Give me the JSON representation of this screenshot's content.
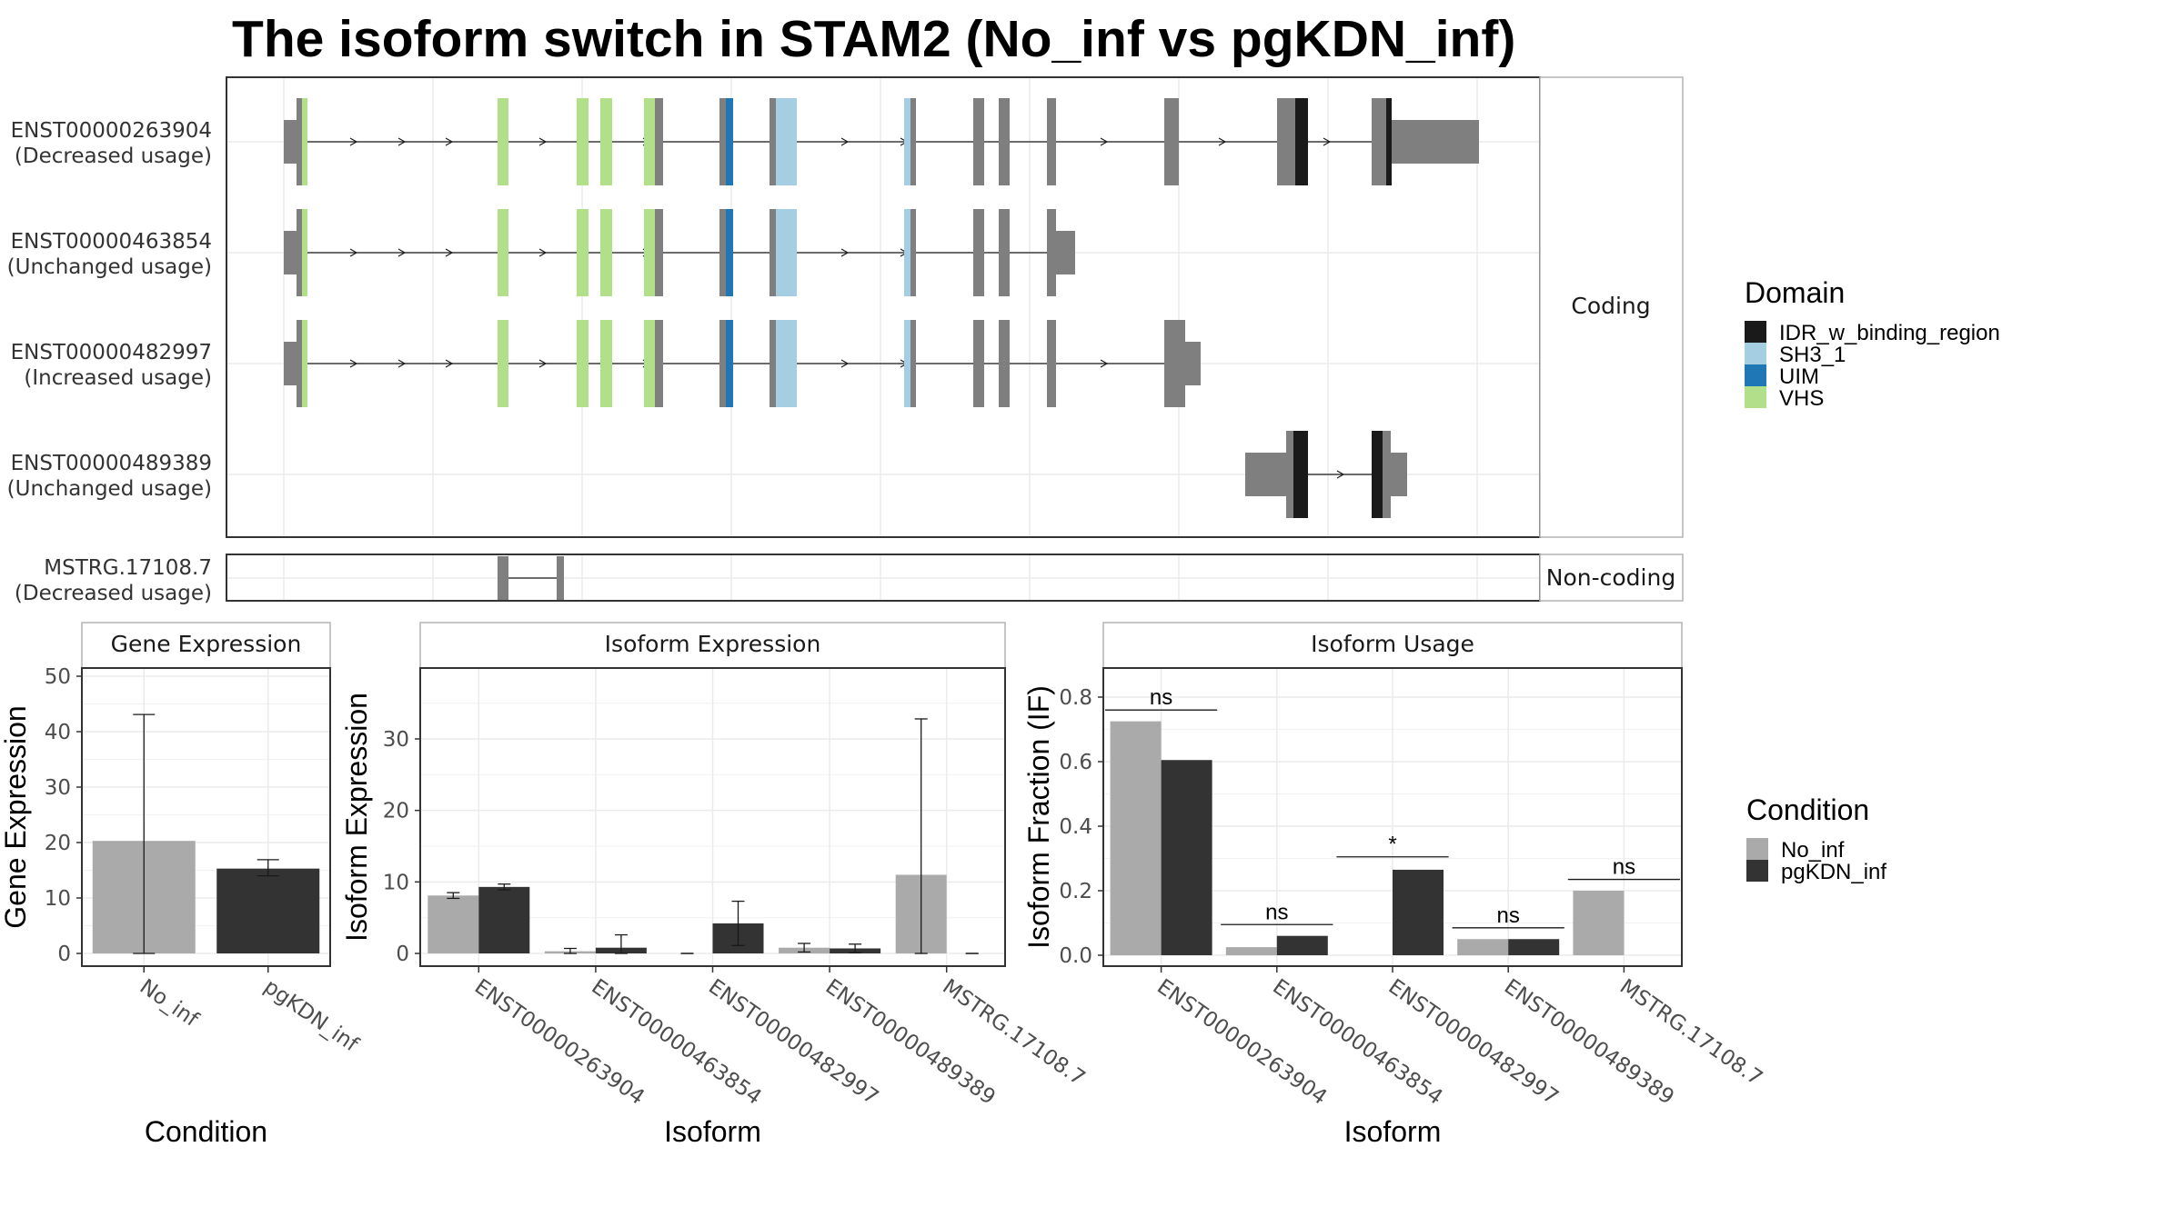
{
  "title": "The isoform switch in STAM2 (No_inf vs pgKDN_inf)",
  "colors": {
    "exon": "#7f7f7f",
    "no_inf": "#aaaaaa",
    "pgkdn_inf": "#333333",
    "IDR_w_binding_region": "#1a1a1a",
    "SH3_1": "#a6cee3",
    "UIM": "#1f78b4",
    "VHS": "#b2df8a"
  },
  "structure": {
    "coding_strip": "Coding",
    "noncoding_strip": "Non-coding",
    "transcripts": [
      {
        "id": "ENST00000263904",
        "usage": "(Decreased usage)",
        "group": "coding"
      },
      {
        "id": "ENST00000463854",
        "usage": "(Unchanged usage)",
        "group": "coding"
      },
      {
        "id": "ENST00000482997",
        "usage": "(Increased usage)",
        "group": "coding"
      },
      {
        "id": "ENST00000489389",
        "usage": "(Unchanged usage)",
        "group": "coding"
      },
      {
        "id": "MSTRG.17108.7",
        "usage": "(Decreased usage)",
        "group": "noncoding"
      }
    ]
  },
  "domain_legend": {
    "title": "Domain",
    "items": [
      {
        "name": "IDR_w_binding_region",
        "color": "#1a1a1a"
      },
      {
        "name": "SH3_1",
        "color": "#a6cee3"
      },
      {
        "name": "UIM",
        "color": "#1f78b4"
      },
      {
        "name": "VHS",
        "color": "#b2df8a"
      }
    ]
  },
  "condition_legend": {
    "title": "Condition",
    "items": [
      {
        "name": "No_inf",
        "color": "#aaaaaa"
      },
      {
        "name": "pgKDN_inf",
        "color": "#333333"
      }
    ]
  },
  "chart_data": [
    {
      "type": "bar",
      "title": "Gene Expression",
      "xlabel": "Condition",
      "ylabel": "Gene Expression",
      "categories": [
        "No_inf",
        "pgKDN_inf"
      ],
      "values": [
        20.3,
        15.3
      ],
      "error_low": [
        0,
        14
      ],
      "error_high": [
        43.1,
        16.9
      ],
      "ylim": [
        0,
        52
      ],
      "yticks": [
        0,
        10,
        20,
        30,
        40,
        50
      ]
    },
    {
      "type": "bar",
      "title": "Isoform Expression",
      "xlabel": "Isoform",
      "ylabel": "Isoform Expression",
      "categories": [
        "ENST00000263904",
        "ENST00000463854",
        "ENST00000482997",
        "ENST00000489389",
        "MSTRG.17108.7"
      ],
      "series": [
        {
          "name": "No_inf",
          "values": [
            8.1,
            0.3,
            0,
            0.8,
            11
          ],
          "error_low": [
            7.7,
            0,
            0,
            0.2,
            0
          ],
          "error_high": [
            8.5,
            0.7,
            0,
            1.4,
            32.8
          ]
        },
        {
          "name": "pgKDN_inf",
          "values": [
            9.3,
            0.8,
            4.2,
            0.7,
            0
          ],
          "error_low": [
            8.9,
            0,
            1.1,
            0.1,
            0
          ],
          "error_high": [
            9.7,
            2.6,
            7.3,
            1.3,
            0
          ]
        }
      ],
      "ylim": [
        0,
        40
      ],
      "yticks": [
        0,
        10,
        20,
        30
      ]
    },
    {
      "type": "bar",
      "title": "Isoform Usage",
      "xlabel": "Isoform",
      "ylabel": "Isoform Fraction (IF)",
      "categories": [
        "ENST00000263904",
        "ENST00000463854",
        "ENST00000482997",
        "ENST00000489389",
        "MSTRG.17108.7"
      ],
      "series": [
        {
          "name": "No_inf",
          "values": [
            0.725,
            0.025,
            0,
            0.05,
            0.2
          ]
        },
        {
          "name": "pgKDN_inf",
          "values": [
            0.605,
            0.06,
            0.265,
            0.05,
            0
          ]
        }
      ],
      "significance": [
        {
          "label": "ns",
          "y": 0.76
        },
        {
          "label": "ns",
          "y": 0.095
        },
        {
          "label": "*",
          "y": 0.305
        },
        {
          "label": "ns",
          "y": 0.085
        },
        {
          "label": "ns",
          "y": 0.235
        }
      ],
      "ylim": [
        -0.04,
        0.92
      ],
      "yticks": [
        0.0,
        0.2,
        0.4,
        0.6,
        0.8
      ],
      "ytick_labels": [
        "0.0",
        "0.2",
        "0.4",
        "0.6",
        "0.8"
      ]
    }
  ]
}
